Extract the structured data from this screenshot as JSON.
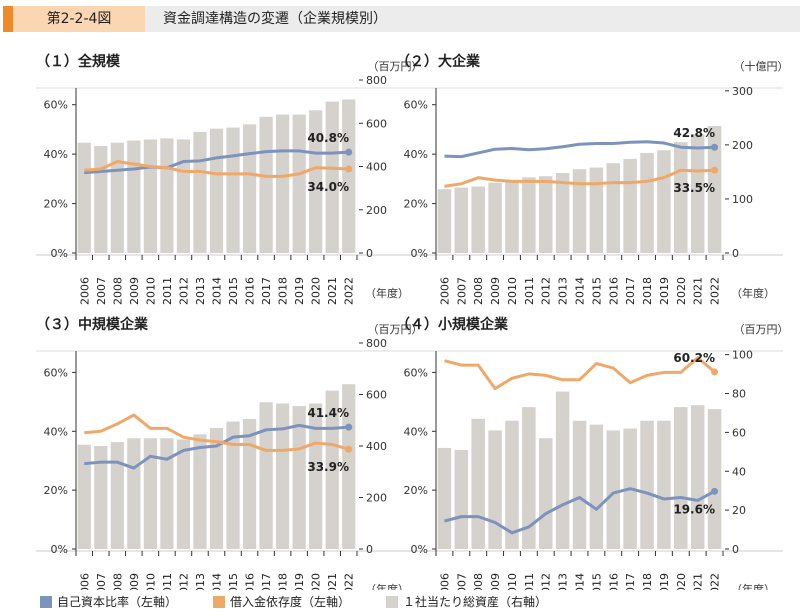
{
  "header": {
    "figure_no": "第2-2-4図",
    "title": "資金調達構造の変遷（企業規模別）"
  },
  "colors": {
    "equity": "#7b93bd",
    "debt": "#f0a868",
    "assets": "#d5d1cc"
  },
  "legend": [
    {
      "label": "自己資本比率（左軸）",
      "color": "#7b93bd"
    },
    {
      "label": "借入金依存度（左軸）",
      "color": "#f0a868"
    },
    {
      "label": "１社当たり総資産（右軸）",
      "color": "#d5d1cc"
    }
  ],
  "year_unit": "（年度）",
  "chart_data": [
    {
      "type": "bar",
      "title": "（１）全規模",
      "right_unit": "（百万円）",
      "categories": [
        "2006",
        "2007",
        "2008",
        "2009",
        "2010",
        "2011",
        "2012",
        "2013",
        "2014",
        "2015",
        "2016",
        "2017",
        "2018",
        "2019",
        "2020",
        "2021",
        "2022"
      ],
      "left_ticks": [
        "0%",
        "20%",
        "40%",
        "60%"
      ],
      "right_ticks": [
        "0",
        "200",
        "400",
        "600",
        "800"
      ],
      "ylim_left": [
        0,
        70
      ],
      "ylim_right": [
        0,
        800
      ],
      "series": [
        {
          "name": "１社当たり総資産",
          "axis": "right",
          "kind": "bar",
          "values": [
            510,
            495,
            510,
            520,
            525,
            530,
            525,
            560,
            575,
            580,
            595,
            630,
            640,
            640,
            660,
            700,
            710
          ]
        },
        {
          "name": "自己資本比率",
          "axis": "left",
          "kind": "line",
          "values": [
            32.5,
            33.0,
            33.5,
            34.0,
            34.8,
            34.5,
            37.0,
            37.3,
            38.5,
            39.3,
            40.2,
            41.0,
            41.3,
            41.3,
            40.4,
            40.4,
            40.8
          ]
        },
        {
          "name": "借入金依存度",
          "axis": "left",
          "kind": "line",
          "values": [
            33.5,
            34.0,
            37.0,
            36.0,
            35.0,
            34.5,
            33.0,
            33.0,
            32.0,
            32.0,
            32.0,
            31.0,
            31.0,
            32.0,
            34.5,
            34.3,
            34.0
          ]
        }
      ],
      "labels": [
        {
          "series": 1,
          "text": "40.8%"
        },
        {
          "series": 2,
          "text": "34.0%"
        }
      ]
    },
    {
      "type": "bar",
      "title": "（２）大企業",
      "right_unit": "（十億円）",
      "categories": [
        "2006",
        "2007",
        "2008",
        "2009",
        "2010",
        "2011",
        "2012",
        "2013",
        "2014",
        "2015",
        "2016",
        "2017",
        "2018",
        "2019",
        "2020",
        "2021",
        "2022"
      ],
      "left_ticks": [
        "0%",
        "20%",
        "40%",
        "60%"
      ],
      "right_ticks": [
        "0",
        "100",
        "200",
        "300"
      ],
      "ylim_left": [
        0,
        70
      ],
      "ylim_right": [
        0,
        320
      ],
      "series": [
        {
          "name": "１社当たり総資産",
          "axis": "right",
          "kind": "bar",
          "values": [
            118,
            121,
            123,
            130,
            135,
            140,
            142,
            148,
            155,
            158,
            166,
            174,
            185,
            190,
            205,
            220,
            235
          ]
        },
        {
          "name": "自己資本比率",
          "axis": "left",
          "kind": "line",
          "values": [
            39.2,
            39.0,
            40.5,
            42.0,
            42.3,
            41.8,
            42.2,
            43.0,
            44.0,
            44.3,
            44.3,
            44.8,
            45.0,
            44.5,
            42.8,
            42.5,
            42.8
          ]
        },
        {
          "name": "借入金依存度",
          "axis": "left",
          "kind": "line",
          "values": [
            27.0,
            28.0,
            30.5,
            29.5,
            29.0,
            29.0,
            29.0,
            28.5,
            28.0,
            28.0,
            28.5,
            28.5,
            29.0,
            30.5,
            33.5,
            33.2,
            33.5
          ]
        }
      ],
      "labels": [
        {
          "series": 1,
          "text": "42.8%"
        },
        {
          "series": 2,
          "text": "33.5%"
        }
      ]
    },
    {
      "type": "bar",
      "title": "（３）中規模企業",
      "right_unit": "（百万円）",
      "categories": [
        "2006",
        "2007",
        "2008",
        "2009",
        "2010",
        "2011",
        "2012",
        "2013",
        "2014",
        "2015",
        "2016",
        "2017",
        "2018",
        "2019",
        "2020",
        "2021",
        "2022"
      ],
      "left_ticks": [
        "0%",
        "20%",
        "40%",
        "60%"
      ],
      "right_ticks": [
        "0",
        "200",
        "400",
        "600",
        "800"
      ],
      "ylim_left": [
        0,
        70
      ],
      "ylim_right": [
        0,
        800
      ],
      "series": [
        {
          "name": "１社当たり総資産",
          "axis": "right",
          "kind": "bar",
          "values": [
            405,
            400,
            415,
            430,
            430,
            430,
            425,
            445,
            470,
            495,
            505,
            570,
            565,
            555,
            565,
            615,
            640
          ]
        },
        {
          "name": "自己資本比率",
          "axis": "left",
          "kind": "line",
          "values": [
            29.0,
            29.5,
            29.5,
            27.5,
            31.5,
            30.5,
            33.5,
            34.5,
            35.0,
            38.0,
            38.5,
            40.5,
            40.8,
            42.0,
            41.0,
            41.0,
            41.4
          ]
        },
        {
          "name": "借入金依存度",
          "axis": "left",
          "kind": "line",
          "values": [
            39.5,
            40.0,
            42.5,
            45.5,
            41.0,
            41.0,
            38.0,
            37.0,
            36.5,
            35.5,
            35.5,
            33.5,
            33.5,
            34.0,
            36.0,
            35.5,
            33.9
          ]
        }
      ],
      "labels": [
        {
          "series": 1,
          "text": "41.4%"
        },
        {
          "series": 2,
          "text": "33.9%"
        }
      ]
    },
    {
      "type": "bar",
      "title": "（４）小規模企業",
      "right_unit": "（百万円）",
      "categories": [
        "2006",
        "2007",
        "2008",
        "2009",
        "2010",
        "2011",
        "2012",
        "2013",
        "2014",
        "2015",
        "2016",
        "2017",
        "2018",
        "2019",
        "2020",
        "2021",
        "2022"
      ],
      "left_ticks": [
        "0%",
        "20%",
        "40%",
        "60%"
      ],
      "right_ticks": [
        "0",
        "20",
        "40",
        "60",
        "80",
        "100"
      ],
      "ylim_left": [
        0,
        70
      ],
      "ylim_right": [
        0,
        106
      ],
      "series": [
        {
          "name": "１社当たり総資産",
          "axis": "right",
          "kind": "bar",
          "values": [
            52,
            51,
            67,
            61,
            66,
            73,
            57,
            81,
            66,
            64,
            61,
            62,
            66,
            66,
            73,
            74,
            72
          ]
        },
        {
          "name": "自己資本比率",
          "axis": "left",
          "kind": "line",
          "values": [
            9.5,
            11.0,
            11.0,
            9.0,
            5.5,
            7.5,
            12.0,
            15.0,
            17.5,
            13.5,
            19.0,
            20.5,
            19.0,
            17.0,
            17.5,
            16.5,
            19.6
          ]
        },
        {
          "name": "借入金依存度",
          "axis": "left",
          "kind": "line",
          "values": [
            64.0,
            62.5,
            62.5,
            54.5,
            58.0,
            59.5,
            59.0,
            57.5,
            57.5,
            63.0,
            61.5,
            56.5,
            59.0,
            60.0,
            60.0,
            65.0,
            60.2
          ]
        }
      ],
      "labels": [
        {
          "series": 1,
          "text": "19.6%"
        },
        {
          "series": 2,
          "text": "60.2%"
        }
      ]
    }
  ]
}
